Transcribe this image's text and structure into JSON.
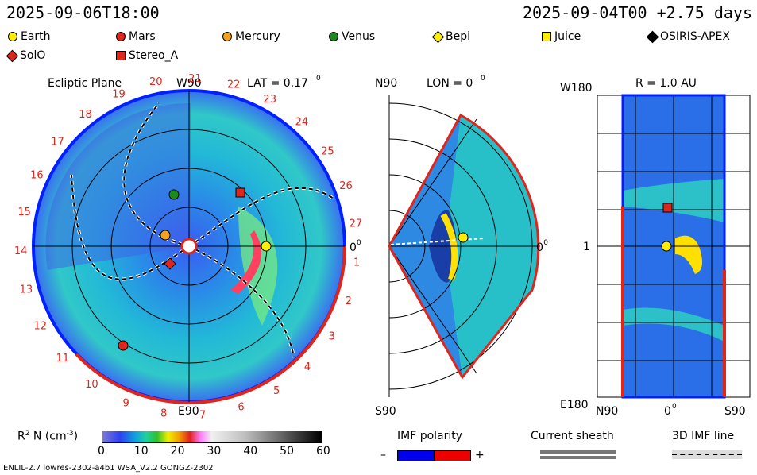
{
  "header": {
    "left_time": "2025-09-06T18:00",
    "right_time": "2025-09-04T00 +2.75 days"
  },
  "legend": [
    {
      "label": "Earth",
      "shape": "circle",
      "color": "#ffee00"
    },
    {
      "label": "Mars",
      "shape": "circle",
      "color": "#e0261c"
    },
    {
      "label": "Mercury",
      "shape": "circle",
      "color": "#f7a21b"
    },
    {
      "label": "Venus",
      "shape": "circle",
      "color": "#1c8a1c"
    },
    {
      "label": "Bepi",
      "shape": "diamond",
      "color": "#ffee00"
    },
    {
      "label": "Juice",
      "shape": "square",
      "color": "#ffee00"
    },
    {
      "label": "OSIRIS-APEX",
      "shape": "diamond",
      "color": "#000000"
    },
    {
      "label": "SolO",
      "shape": "diamond",
      "color": "#e0261c"
    },
    {
      "label": "Stereo_A",
      "shape": "square",
      "color": "#e0261c"
    }
  ],
  "panels": {
    "ecliptic": {
      "title": "Ecliptic Plane",
      "top_label": "W90",
      "lat": "LAT = 0.17",
      "lat_deg": "0",
      "bottom_label": "E90",
      "right_label": "0",
      "right_deg": "0",
      "carrington_ticks": [
        "1",
        "2",
        "3",
        "4",
        "5",
        "6",
        "7",
        "8",
        "9",
        "10",
        "11",
        "12",
        "13",
        "14",
        "15",
        "16",
        "17",
        "18",
        "19",
        "20",
        "21",
        "22",
        "23",
        "24",
        "25",
        "26",
        "27"
      ]
    },
    "meridional": {
      "top_label": "N90",
      "lon": "LON = 0",
      "lon_deg": "0",
      "bottom_label": "S90",
      "right_label": "0",
      "right_deg": "0"
    },
    "radial": {
      "title": "R = 1.0 AU",
      "top_left": "W180",
      "mid_left": "1",
      "bottom_left": "E180",
      "bottom_axis": {
        "left": "N90",
        "center": "0",
        "center_deg": "0",
        "right": "S90"
      }
    }
  },
  "colorbar": {
    "label": "R",
    "label_sup": "2",
    "label_rest": " N (cm",
    "label_sup2": "-3",
    "label_end": ")",
    "ticks": [
      "0",
      "10",
      "20",
      "30",
      "40",
      "50",
      "60"
    ]
  },
  "imf_polarity": {
    "title": "IMF polarity",
    "minus": "–",
    "plus": "+",
    "neg_color": "#0000ee",
    "pos_color": "#ee0000"
  },
  "current_sheath": {
    "title": "Current sheath"
  },
  "imf_line": {
    "title": "3D IMF line"
  },
  "footer": {
    "left": "ENLIL-2.7 lowres-2302-a4b1 WSA_V2.2 GONGZ-2302"
  },
  "chart_data": [
    {
      "type": "heatmap",
      "title": "Ecliptic Plane",
      "variable": "R2 N (cm-3)",
      "range": [
        0,
        60
      ],
      "objects": [
        "Earth",
        "Mars",
        "Mercury",
        "Venus",
        "Bepi",
        "Juice",
        "OSIRIS-APEX",
        "SolO",
        "Stereo_A"
      ]
    },
    {
      "type": "heatmap",
      "title": "LON = 0",
      "variable": "R2 N (cm-3)",
      "range": [
        0,
        60
      ]
    },
    {
      "type": "heatmap",
      "title": "R = 1.0 AU",
      "variable": "R2 N (cm-3)",
      "range": [
        0,
        60
      ]
    }
  ]
}
